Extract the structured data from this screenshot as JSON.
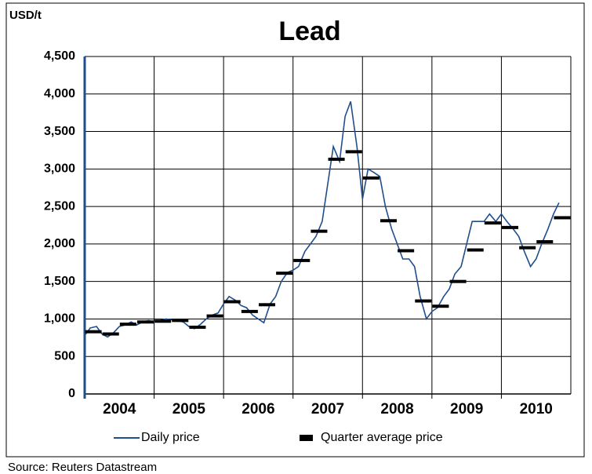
{
  "chart_data": {
    "type": "line",
    "title": "Lead",
    "y_label": "USD/t",
    "source": "Source: Reuters Datastream",
    "xlim": [
      2004,
      2011
    ],
    "xticks": [
      {
        "value": 2004.5,
        "label": "2004"
      },
      {
        "value": 2005.5,
        "label": "2005"
      },
      {
        "value": 2006.5,
        "label": "2006"
      },
      {
        "value": 2007.5,
        "label": "2007"
      },
      {
        "value": 2008.5,
        "label": "2008"
      },
      {
        "value": 2009.5,
        "label": "2009"
      },
      {
        "value": 2010.5,
        "label": "2010"
      }
    ],
    "xgrid": [
      2005,
      2006,
      2007,
      2008,
      2009,
      2010
    ],
    "ylim": [
      0,
      4500
    ],
    "yticks": [
      0,
      500,
      {
        "value": 1000,
        "label": "1,000"
      },
      {
        "value": 1500,
        "label": "1,500"
      },
      {
        "value": 2000,
        "label": "2,000"
      },
      {
        "value": 2500,
        "label": "2,500"
      },
      {
        "value": 3000,
        "label": "3,000"
      },
      {
        "value": 3500,
        "label": "3,500"
      },
      {
        "value": 4000,
        "label": "4,000"
      },
      {
        "value": 4500,
        "label": "4,500"
      }
    ],
    "grid": true,
    "legend": "bottom",
    "series": [
      {
        "name": "Daily price",
        "color": "#1f4e8c",
        "style": "line",
        "x": [
          2004.0,
          2004.08,
          2004.17,
          2004.25,
          2004.33,
          2004.42,
          2004.5,
          2004.58,
          2004.67,
          2004.75,
          2004.83,
          2004.92,
          2005.0,
          2005.08,
          2005.17,
          2005.25,
          2005.33,
          2005.42,
          2005.5,
          2005.58,
          2005.67,
          2005.75,
          2005.83,
          2005.92,
          2006.0,
          2006.08,
          2006.17,
          2006.25,
          2006.33,
          2006.42,
          2006.5,
          2006.58,
          2006.67,
          2006.75,
          2006.83,
          2006.92,
          2007.0,
          2007.08,
          2007.17,
          2007.25,
          2007.33,
          2007.42,
          2007.5,
          2007.58,
          2007.67,
          2007.75,
          2007.83,
          2007.92,
          2008.0,
          2008.08,
          2008.17,
          2008.25,
          2008.33,
          2008.42,
          2008.5,
          2008.58,
          2008.67,
          2008.75,
          2008.83,
          2008.92,
          2009.0,
          2009.08,
          2009.17,
          2009.25,
          2009.33,
          2009.42,
          2009.5,
          2009.58,
          2009.67,
          2009.75,
          2009.83,
          2009.92,
          2010.0,
          2010.08,
          2010.17,
          2010.25,
          2010.33,
          2010.42,
          2010.5,
          2010.58,
          2010.67,
          2010.75,
          2010.83
        ],
        "values": [
          780,
          880,
          900,
          800,
          760,
          820,
          900,
          920,
          960,
          920,
          960,
          980,
          960,
          980,
          1000,
          990,
          980,
          960,
          900,
          870,
          930,
          1000,
          1050,
          1080,
          1200,
          1300,
          1250,
          1180,
          1150,
          1050,
          1000,
          950,
          1200,
          1300,
          1500,
          1620,
          1650,
          1700,
          1900,
          2000,
          2100,
          2300,
          2800,
          3300,
          3100,
          3700,
          3900,
          3300,
          2600,
          3000,
          2950,
          2900,
          2500,
          2200,
          2000,
          1800,
          1800,
          1700,
          1300,
          1000,
          1100,
          1150,
          1300,
          1400,
          1600,
          1700,
          2000,
          2300,
          2300,
          2300,
          2400,
          2300,
          2400,
          2300,
          2200,
          2100,
          1900,
          1700,
          1800,
          2000,
          2200,
          2400,
          2550
        ]
      },
      {
        "name": "Quarter average price",
        "color": "#000000",
        "style": "dash",
        "x": [
          2004.125,
          2004.375,
          2004.625,
          2004.875,
          2005.125,
          2005.375,
          2005.625,
          2005.875,
          2006.125,
          2006.375,
          2006.625,
          2006.875,
          2007.125,
          2007.375,
          2007.625,
          2007.875,
          2008.125,
          2008.375,
          2008.625,
          2008.875,
          2009.125,
          2009.375,
          2009.625,
          2009.875,
          2010.125,
          2010.375,
          2010.625,
          2010.875
        ],
        "values": [
          830,
          800,
          930,
          960,
          970,
          980,
          890,
          1040,
          1230,
          1100,
          1190,
          1610,
          1780,
          2170,
          3130,
          3230,
          2880,
          2310,
          1910,
          1240,
          1170,
          1500,
          1920,
          2280,
          2220,
          1950,
          2030,
          2350
        ]
      }
    ]
  }
}
